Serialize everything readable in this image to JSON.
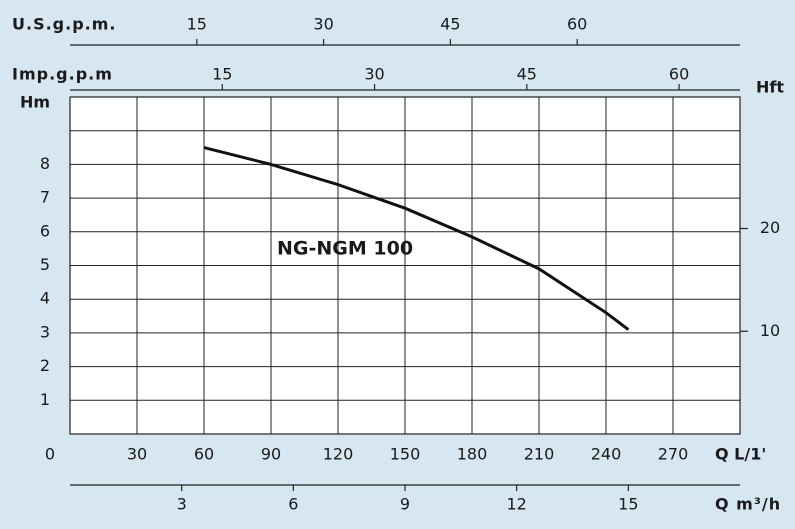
{
  "chart_data": {
    "type": "line",
    "y_label": "Hm",
    "y2_label": "Hft",
    "x_label": "Q L/1'",
    "xlim": [
      0,
      300
    ],
    "xticks": [
      0,
      30,
      60,
      90,
      120,
      150,
      180,
      210,
      240,
      270
    ],
    "ylim": [
      0,
      10
    ],
    "yticks": [
      1,
      2,
      3,
      4,
      5,
      6,
      7,
      8,
      {
        "value": 9,
        "label": null
      }
    ],
    "y2lim": [
      0,
      32.8
    ],
    "y2ticks": [
      10,
      20
    ],
    "grid": true,
    "secondary_x_axes": [
      {
        "label": "U.S.g.p.m.",
        "lim": [
          0,
          79.26
        ],
        "ticks": [
          15,
          30,
          45,
          60
        ]
      },
      {
        "label": "Imp.g.p.m",
        "lim": [
          0,
          66
        ],
        "ticks": [
          15,
          30,
          45,
          60
        ]
      },
      {
        "label": "Q m³/h",
        "lim": [
          0,
          18
        ],
        "ticks": [
          3,
          6,
          9,
          12,
          15
        ]
      }
    ],
    "x": [
      60,
      90,
      120,
      150,
      180,
      210,
      240,
      250
    ],
    "series": [
      {
        "name": "NG-NGM 100",
        "color": "#111111",
        "values": [
          8.5,
          8.0,
          7.4,
          6.7,
          5.85,
          4.9,
          3.6,
          3.1
        ]
      }
    ]
  }
}
